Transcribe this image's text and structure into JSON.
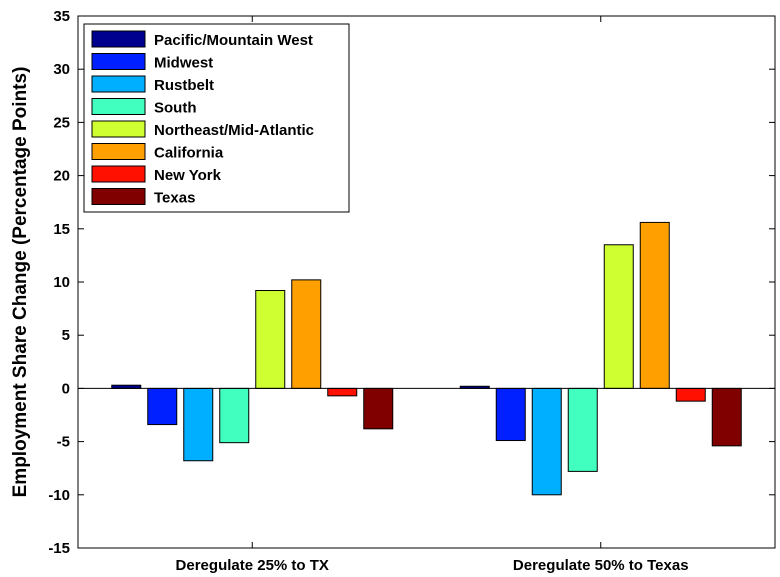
{
  "chart_data": {
    "type": "bar",
    "title": "",
    "xlabel": "",
    "ylabel": "Employment Share Change (Percentage Points)",
    "ylim": [
      -15,
      35
    ],
    "yticks": [
      -15,
      -10,
      -5,
      0,
      5,
      10,
      15,
      20,
      25,
      30,
      35
    ],
    "grid": false,
    "legend_position": "top-left",
    "categories": [
      "Deregulate 25% to TX",
      "Deregulate 50% to Texas"
    ],
    "series": [
      {
        "name": "Pacific/Mountain West",
        "color": "#00008f",
        "values": [
          0.3,
          0.2
        ]
      },
      {
        "name": "Midwest",
        "color": "#0020ff",
        "values": [
          -3.4,
          -4.9
        ]
      },
      {
        "name": "Rustbelt",
        "color": "#00afff",
        "values": [
          -6.8,
          -10.0
        ]
      },
      {
        "name": "South",
        "color": "#40ffbf",
        "values": [
          -5.1,
          -7.8
        ]
      },
      {
        "name": "Northeast/Mid-Atlantic",
        "color": "#cfff30",
        "values": [
          9.2,
          13.5
        ]
      },
      {
        "name": "California",
        "color": "#ff9f00",
        "values": [
          10.2,
          15.6
        ]
      },
      {
        "name": "New York",
        "color": "#ff1000",
        "values": [
          -0.7,
          -1.2
        ]
      },
      {
        "name": "Texas",
        "color": "#800000",
        "values": [
          -3.8,
          -5.4
        ]
      }
    ]
  }
}
